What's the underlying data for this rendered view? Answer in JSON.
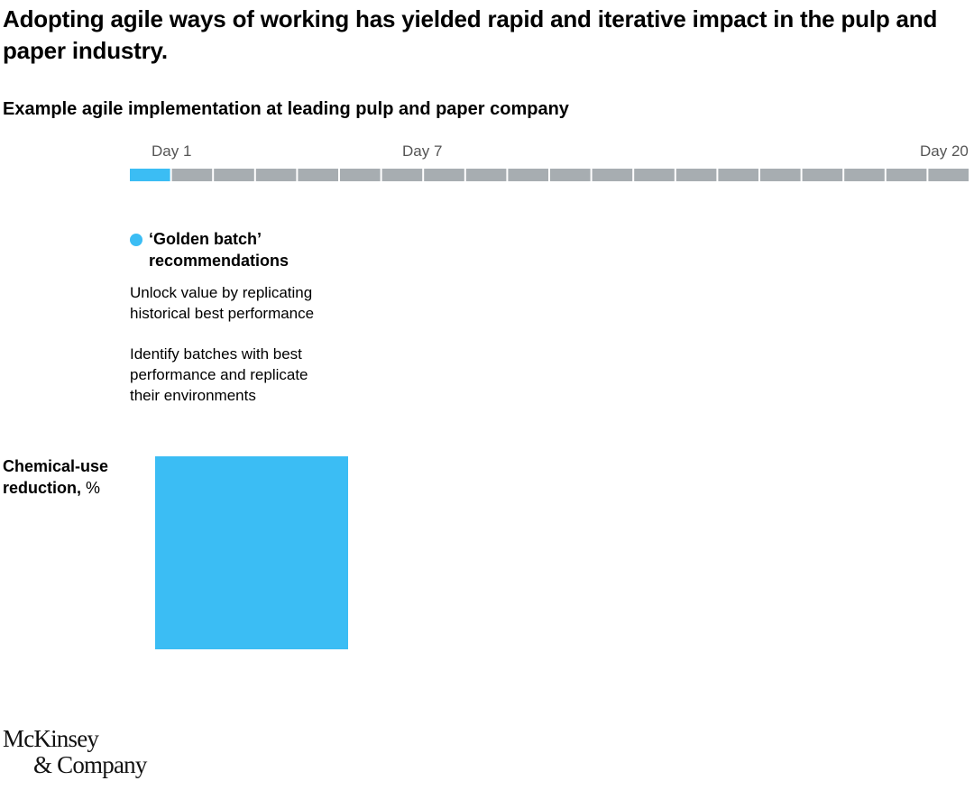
{
  "title": "Adopting agile ways of working has yielded rapid and iterative impact in the pulp and paper industry.",
  "subtitle": "Example agile implementation at leading pulp and paper company",
  "timeline": {
    "day_labels": [
      "Day 1",
      "Day 7",
      "Day 20"
    ],
    "total_segments": 20,
    "active_segments": 1,
    "active_color": "#3bbdf4",
    "inactive_color": "#a7adb1"
  },
  "phase": {
    "name_line1": "‘Golden batch’",
    "name_line2": "recommendations",
    "desc1_line1": "Unlock value by replicating",
    "desc1_line2": "historical best performance",
    "desc2_line1": "Identify batches with best",
    "desc2_line2": "performance and replicate",
    "desc2_line3": "their environments",
    "color": "#3bbdf4"
  },
  "metric": {
    "label_line1": "Chemical-use",
    "label_line2": "reduction,",
    "unit": "%"
  },
  "logo": {
    "line1": "McKinsey",
    "line2": "& Company"
  },
  "chart_data": {
    "type": "bar",
    "title": "Chemical-use reduction, %",
    "categories": [
      "‘Golden batch’ recommendations"
    ],
    "series": [
      {
        "name": "Chemical-use reduction, %",
        "color": "#3bbdf4",
        "values": [
          null
        ]
      }
    ],
    "timeline_days": [
      1,
      7,
      20
    ],
    "active_day": 1
  }
}
